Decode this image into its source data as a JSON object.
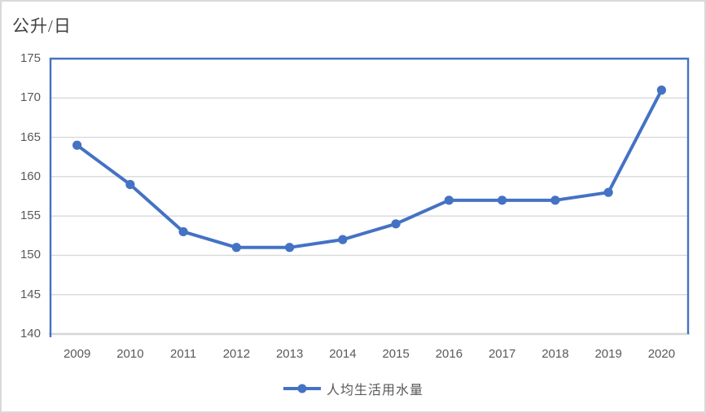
{
  "chart_data": {
    "type": "line",
    "title": "",
    "unit_label": "公升/日",
    "legend": "人均生活用水量",
    "legend_position": "bottom",
    "x": [
      "2009",
      "2010",
      "2011",
      "2012",
      "2013",
      "2014",
      "2015",
      "2016",
      "2017",
      "2018",
      "2019",
      "2020"
    ],
    "series": [
      {
        "name": "人均生活用水量",
        "values": [
          164,
          159,
          153,
          151,
          151,
          152,
          154,
          157,
          157,
          157,
          158,
          171
        ]
      }
    ],
    "ylim": [
      140,
      175
    ],
    "ytick_step": 5,
    "yticks": [
      140,
      145,
      150,
      155,
      160,
      165,
      170,
      175
    ],
    "grid": "horizontal",
    "colors": {
      "line": "#4472C4",
      "marker": "#4472C4",
      "plot_border": "#4472C4",
      "gridline": "#d9d9d9",
      "x_axis_line": "#d6d6d6",
      "outer_border": "#d9d9d9",
      "tick_text": "#595959",
      "title_text": "#404040"
    }
  }
}
